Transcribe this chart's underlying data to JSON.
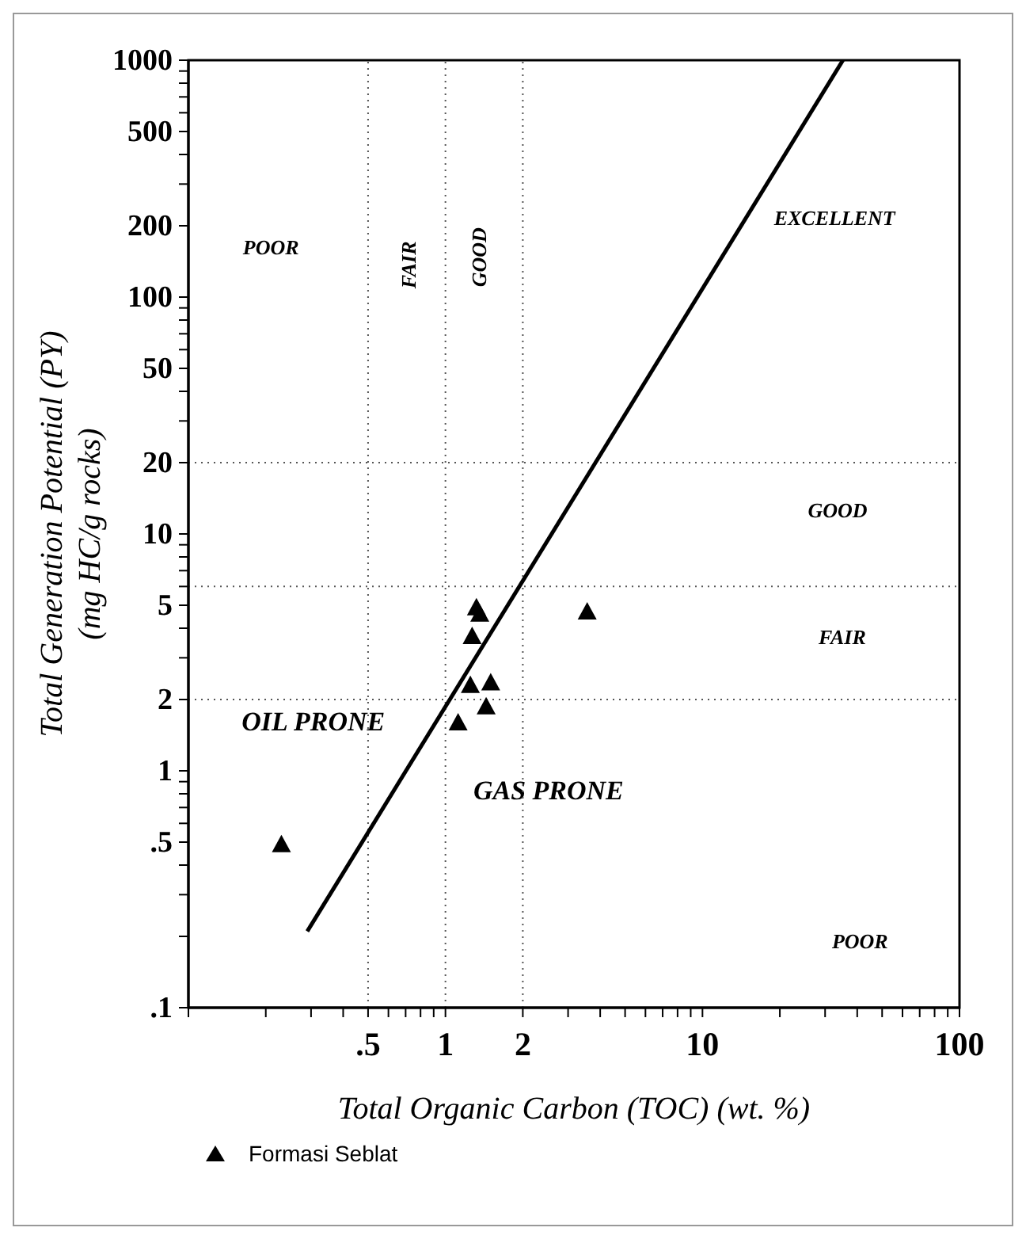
{
  "chart_data": {
    "type": "scatter",
    "xlabel": "Total Organic Carbon (TOC) (wt. %)",
    "ylabel": "Total Generation Potential (PY)\n(mg HC/g rocks)",
    "log": "xy",
    "xlim": [
      0.1,
      100
    ],
    "ylim": [
      0.1,
      1000
    ],
    "xticks": [
      {
        "value": 0.1,
        "label": null
      },
      {
        "value": 0.2,
        "label": null
      },
      {
        "value": 0.3,
        "label": null
      },
      {
        "value": 0.4,
        "label": null
      },
      {
        "value": 0.5,
        "label": ".5"
      },
      {
        "value": 0.6,
        "label": null
      },
      {
        "value": 0.7,
        "label": null
      },
      {
        "value": 0.8,
        "label": null
      },
      {
        "value": 0.9,
        "label": null
      },
      1,
      2,
      {
        "value": 3,
        "label": null
      },
      {
        "value": 4,
        "label": null
      },
      {
        "value": 5,
        "label": null
      },
      {
        "value": 6,
        "label": null
      },
      {
        "value": 7,
        "label": null
      },
      {
        "value": 8,
        "label": null
      },
      {
        "value": 9,
        "label": null
      },
      10,
      {
        "value": 20,
        "label": null
      },
      {
        "value": 30,
        "label": null
      },
      {
        "value": 40,
        "label": null
      },
      {
        "value": 50,
        "label": null
      },
      {
        "value": 60,
        "label": null
      },
      {
        "value": 70,
        "label": null
      },
      {
        "value": 80,
        "label": null
      },
      {
        "value": 90,
        "label": null
      },
      100
    ],
    "yticks": [
      {
        "value": 0.1,
        "label": ".1"
      },
      {
        "value": 0.2,
        "label": null
      },
      {
        "value": 0.3,
        "label": null
      },
      {
        "value": 0.4,
        "label": null
      },
      {
        "value": 0.5,
        "label": ".5"
      },
      {
        "value": 0.6,
        "label": null
      },
      {
        "value": 0.7,
        "label": null
      },
      {
        "value": 0.8,
        "label": null
      },
      {
        "value": 0.9,
        "label": null
      },
      1,
      2,
      {
        "value": 3,
        "label": null
      },
      {
        "value": 4,
        "label": null
      },
      5,
      {
        "value": 6,
        "label": null
      },
      {
        "value": 7,
        "label": null
      },
      {
        "value": 8,
        "label": null
      },
      {
        "value": 9,
        "label": null
      },
      10,
      20,
      {
        "value": 30,
        "label": null
      },
      {
        "value": 40,
        "label": null
      },
      50,
      {
        "value": 60,
        "label": null
      },
      {
        "value": 70,
        "label": null
      },
      {
        "value": 80,
        "label": null
      },
      {
        "value": 90,
        "label": null
      },
      100,
      200,
      {
        "value": 300,
        "label": null
      },
      {
        "value": 400,
        "label": null
      },
      500,
      {
        "value": 600,
        "label": null
      },
      {
        "value": 700,
        "label": null
      },
      {
        "value": 800,
        "label": null
      },
      {
        "value": 900,
        "label": null
      },
      1000
    ],
    "series": [
      {
        "name": "Formasi Seblat",
        "color": "#000000",
        "marker": "triangle",
        "x": [
          0.23,
          1.12,
          1.25,
          1.5,
          1.44,
          1.27,
          1.32,
          1.36,
          3.56
        ],
        "values": [
          0.49,
          1.6,
          2.3,
          2.36,
          1.87,
          3.7,
          4.9,
          4.6,
          4.7
        ]
      },
      {
        "type": "line",
        "color": "#000000",
        "marker": "none",
        "line_style": "solid",
        "x": [
          0.29,
          35.2
        ],
        "values": [
          0.21,
          1000
        ]
      }
    ],
    "ref_lines": [
      {
        "axis": "x",
        "value": 0.5,
        "color": "#555555",
        "line_style": "dotted"
      },
      {
        "axis": "x",
        "value": 1,
        "color": "#555555",
        "line_style": "dotted"
      },
      {
        "axis": "x",
        "value": 2,
        "color": "#555555",
        "line_style": "dotted"
      },
      {
        "axis": "y",
        "value": 2,
        "color": "#555555",
        "line_style": "dotted"
      },
      {
        "axis": "y",
        "value": 6,
        "color": "#555555",
        "line_style": "dotted"
      },
      {
        "axis": "y",
        "value": 20,
        "color": "#555555",
        "line_style": "dotted"
      }
    ],
    "annotations": [
      "POOR",
      "FAIR",
      "GOOD",
      "EXCELLENT",
      "GOOD",
      "FAIR",
      "POOR",
      "OIL PRONE",
      "GAS PRONE"
    ],
    "legend": "bottom"
  }
}
